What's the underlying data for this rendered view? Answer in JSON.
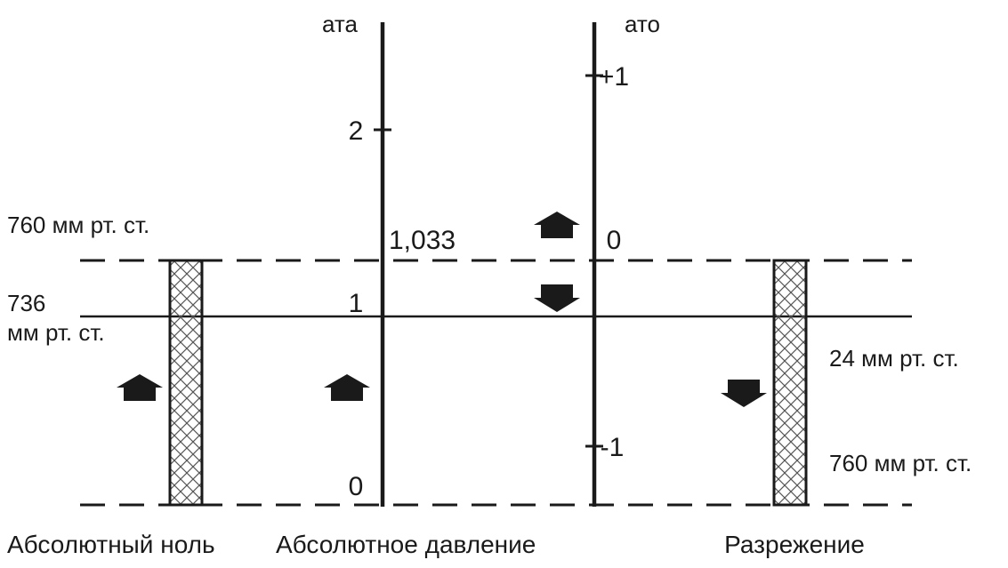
{
  "scales": {
    "absolute_unit": "ата",
    "gauge_unit": "ато",
    "absolute_ticks": {
      "two": "2",
      "atm_value": "1,033",
      "one": "1",
      "zero": "0"
    },
    "gauge_ticks": {
      "plus_one": "+1",
      "zero": "0",
      "minus_one": "-1"
    }
  },
  "left_labels": {
    "normal_pressure": "760 мм рт. ст.",
    "local_pressure_value": "736",
    "local_pressure_unit": "мм рт. ст."
  },
  "right_labels": {
    "vacuum_offset": "24 мм рт. ст.",
    "vacuum_full": "760 мм рт. ст."
  },
  "bottom_labels": {
    "absolute_zero": "Абсолютный ноль",
    "absolute_pressure": "Абсолютное давление",
    "vacuum": "Разрежение"
  },
  "colors": {
    "ink": "#1a1a1a",
    "hatch": "#555555"
  }
}
